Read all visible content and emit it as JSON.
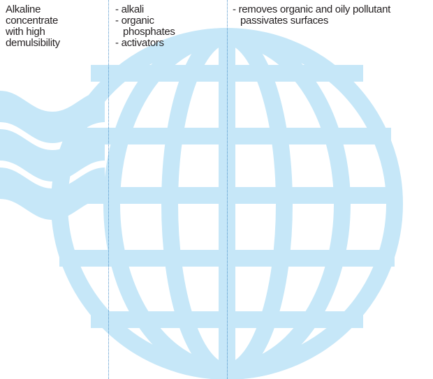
{
  "description": [
    "Alkaline",
    "concentrate",
    "with high",
    "demulsibility"
  ],
  "composition": [
    "- alkali",
    "- organic",
    "phosphates",
    "- activators"
  ],
  "properties": [
    "- removes organic and oily pollutant",
    "passivates surfaces"
  ]
}
